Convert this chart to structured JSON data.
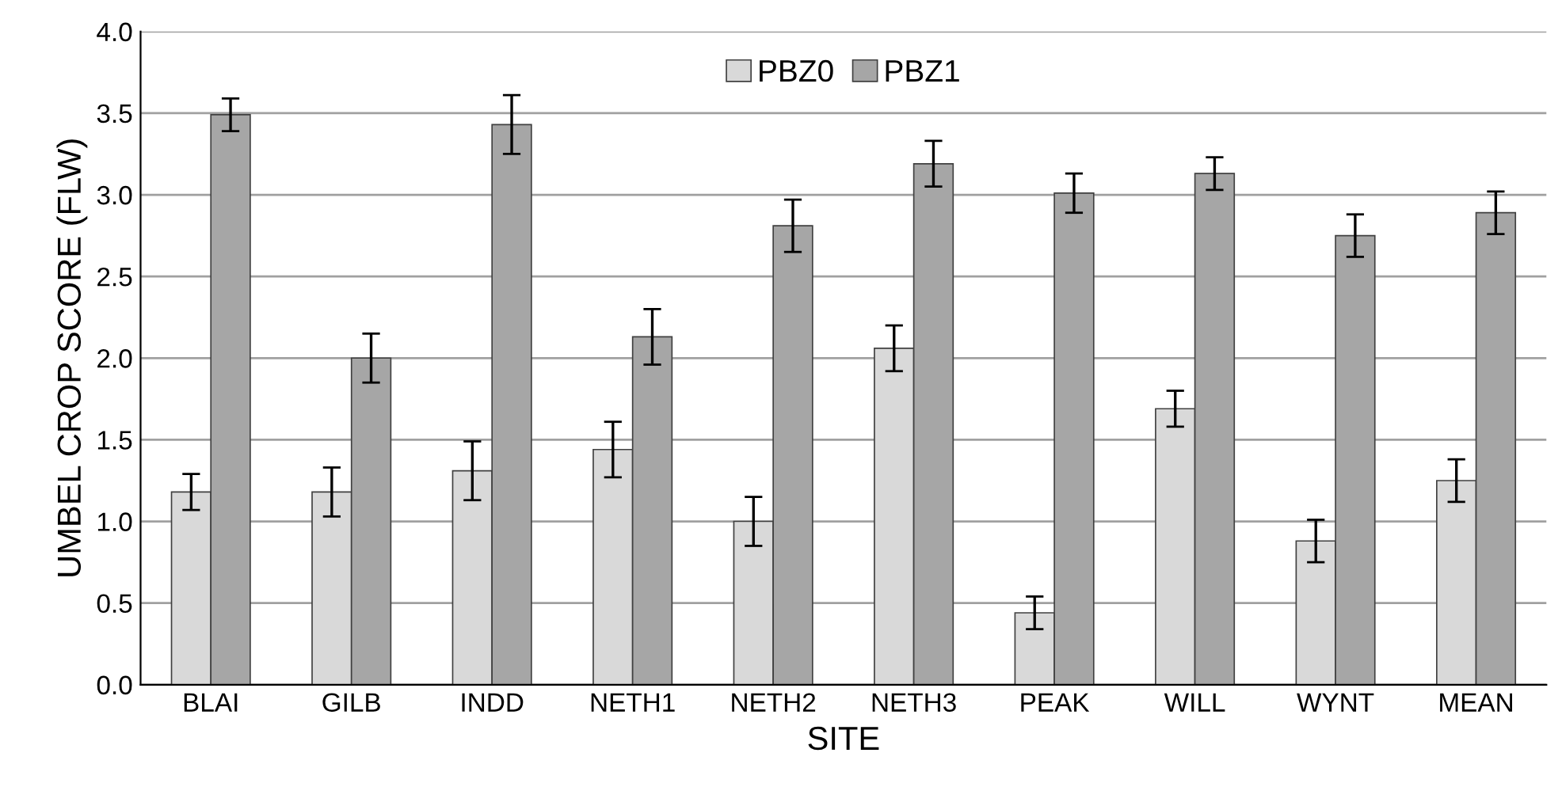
{
  "chart_data": {
    "type": "bar",
    "xlabel": "SITE",
    "ylabel": "UMBEL CROP SCORE (FLW)",
    "categories": [
      "BLAI",
      "GILB",
      "INDD",
      "NETH1",
      "NETH2",
      "NETH3",
      "PEAK",
      "WILL",
      "WYNT",
      "MEAN"
    ],
    "series": [
      {
        "name": "PBZ0",
        "color": "#d9d9d9",
        "values": [
          1.18,
          1.18,
          1.31,
          1.44,
          1.0,
          2.06,
          0.44,
          1.69,
          0.88,
          1.25
        ],
        "errors": [
          0.11,
          0.15,
          0.18,
          0.17,
          0.15,
          0.14,
          0.1,
          0.11,
          0.13,
          0.13
        ]
      },
      {
        "name": "PBZ1",
        "color": "#a6a6a6",
        "values": [
          3.49,
          2.0,
          3.43,
          2.13,
          2.81,
          3.19,
          3.01,
          3.13,
          2.75,
          2.89
        ],
        "errors": [
          0.1,
          0.15,
          0.18,
          0.17,
          0.16,
          0.14,
          0.12,
          0.1,
          0.13,
          0.13
        ]
      }
    ],
    "ylim": [
      0,
      4.0
    ],
    "yticks": [
      {
        "value": 0,
        "label": "0.0"
      },
      {
        "value": 0.5,
        "label": "0.5"
      },
      {
        "value": 1,
        "label": "1.0"
      },
      {
        "value": 1.5,
        "label": "1.5"
      },
      {
        "value": 2,
        "label": "2.0"
      },
      {
        "value": 2.5,
        "label": "2.5"
      },
      {
        "value": 3,
        "label": "3.0"
      },
      {
        "value": 3.5,
        "label": "3.5"
      },
      {
        "value": 4,
        "label": "4.0"
      }
    ],
    "grid": "y",
    "legend": "top"
  }
}
